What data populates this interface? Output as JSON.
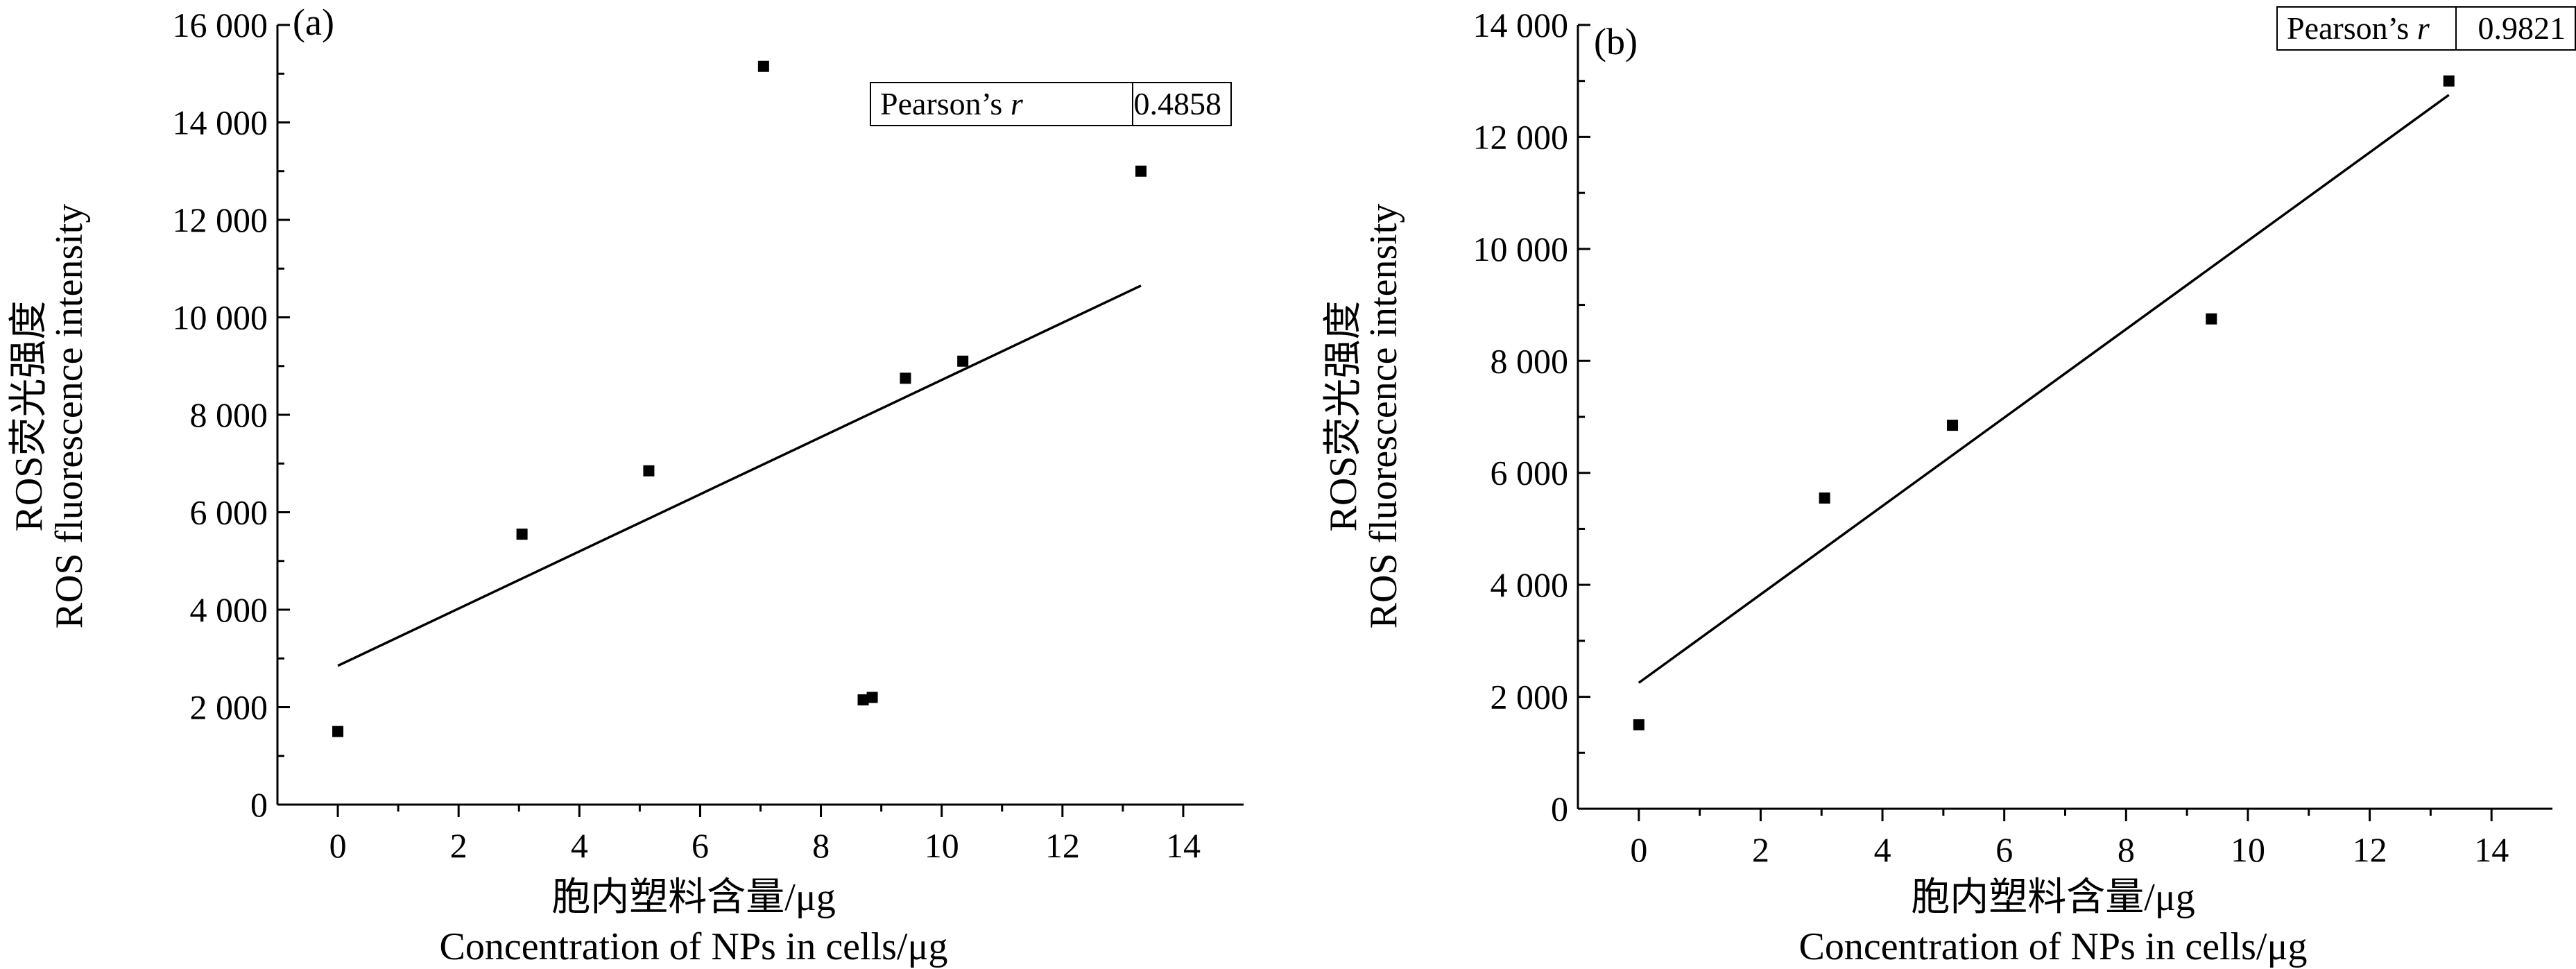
{
  "chart_data": [
    {
      "type": "scatter",
      "panel_label": "(a)",
      "xlabel_cn": "胞内塑料含量/μg",
      "xlabel_en": "Concentration of NPs in cells/μg",
      "ylabel_cn": "ROS荧光强度",
      "ylabel_en": "ROS fluorescence intensity",
      "xlim": [
        -1,
        15
      ],
      "ylim": [
        0,
        16000
      ],
      "xticks": [
        0,
        2,
        4,
        6,
        8,
        10,
        12,
        14
      ],
      "xtick_labels": [
        "0",
        "2",
        "4",
        "6",
        "8",
        "10",
        "12",
        "14"
      ],
      "yticks": [
        0,
        2000,
        4000,
        6000,
        8000,
        10000,
        12000,
        14000,
        16000
      ],
      "ytick_labels": [
        "0",
        "2 000",
        "4 000",
        "6 000",
        "8 000",
        "10 000",
        "12 000",
        "14 000",
        "16 000"
      ],
      "points": [
        {
          "x": 0,
          "y": 1500
        },
        {
          "x": 3.05,
          "y": 5550
        },
        {
          "x": 5.15,
          "y": 6850
        },
        {
          "x": 7.05,
          "y": 15150
        },
        {
          "x": 8.7,
          "y": 2150
        },
        {
          "x": 8.85,
          "y": 2200
        },
        {
          "x": 9.4,
          "y": 8750
        },
        {
          "x": 10.35,
          "y": 9100
        },
        {
          "x": 13.3,
          "y": 13000
        }
      ],
      "fit_line": {
        "x": [
          0,
          13.3
        ],
        "y": [
          2850,
          10650
        ]
      },
      "pearson": {
        "label": "Pearson’s",
        "symbol": "r",
        "value": "0.4858"
      }
    },
    {
      "type": "scatter",
      "panel_label": "(b)",
      "xlabel_cn": "胞内塑料含量/μg",
      "xlabel_en": "Concentration of NPs in cells/μg",
      "ylabel_cn": "ROS荧光强度",
      "ylabel_en": "ROS fluorescence intensity",
      "xlim": [
        -1,
        15
      ],
      "ylim": [
        0,
        14000
      ],
      "xticks": [
        0,
        2,
        4,
        6,
        8,
        10,
        12,
        14
      ],
      "xtick_labels": [
        "0",
        "2",
        "4",
        "6",
        "8",
        "10",
        "12",
        "14"
      ],
      "yticks": [
        0,
        2000,
        4000,
        6000,
        8000,
        10000,
        12000,
        14000
      ],
      "ytick_labels": [
        "0",
        "2 000",
        "4 000",
        "6 000",
        "8 000",
        "10 000",
        "12 000",
        "14 000"
      ],
      "points": [
        {
          "x": 0,
          "y": 1500
        },
        {
          "x": 3.05,
          "y": 5550
        },
        {
          "x": 5.15,
          "y": 6850
        },
        {
          "x": 9.4,
          "y": 8750
        },
        {
          "x": 13.3,
          "y": 13000
        }
      ],
      "fit_line": {
        "x": [
          0,
          13.3
        ],
        "y": [
          2250,
          12750
        ]
      },
      "pearson": {
        "label": "Pearson’s",
        "symbol": "r",
        "value": "0.9821"
      }
    }
  ]
}
